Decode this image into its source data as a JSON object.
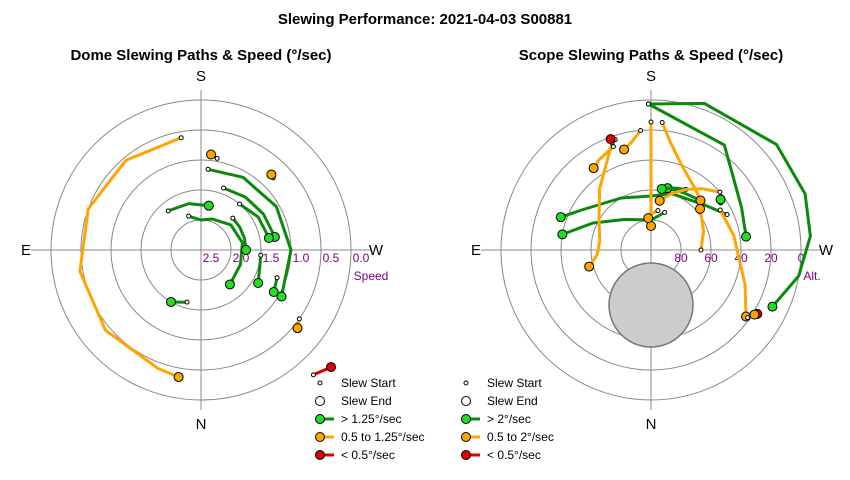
{
  "figure": {
    "title": "Slewing Performance: 2021-04-03 S00881"
  },
  "colors": {
    "fast": "#0a8a0a",
    "medium": "#ffa500",
    "slow": "#e00000",
    "marker_fast": "#22dd22",
    "marker_medium": "#ffa500",
    "marker_slow": "#e00000",
    "ring_label": "#800080",
    "grid": "#888888",
    "shade": "#cccccc"
  },
  "chart_data": [
    {
      "type": "polar-path",
      "title": "Dome Slewing Paths & Speed (°/sec)",
      "compass": {
        "top": "S",
        "bottom": "N",
        "left": "E",
        "right": "W"
      },
      "radial_axis": {
        "name": "Speed",
        "ticks": [
          "2.5",
          "2.0",
          "1.5",
          "1.0",
          "0.5",
          "0.0"
        ],
        "inverted": true,
        "range": [
          0,
          3
        ]
      },
      "legend": [
        {
          "label": "Slew Start",
          "kind": "start"
        },
        {
          "label": "Slew End",
          "kind": "end"
        },
        {
          "label": "> 1.25°/sec",
          "kind": "fast"
        },
        {
          "label": "0.5 to 1.25°/sec",
          "kind": "medium"
        },
        {
          "label": "< 0.5°/sec",
          "kind": "slow"
        }
      ],
      "paths": [
        {
          "cls": "medium",
          "az": [
            170,
            140,
            110,
            80,
            50,
            20,
            10
          ],
          "speed": [
            1.1,
            1.05,
            1.0,
            0.95,
            0.92,
            0.9,
            0.85
          ]
        },
        {
          "cls": "fast",
          "az": [
            185,
            210,
            240,
            270,
            300
          ],
          "speed": [
            1.65,
            1.6,
            1.55,
            1.5,
            1.45
          ]
        },
        {
          "cls": "fast",
          "az": [
            200,
            220,
            240,
            260
          ],
          "speed": [
            1.9,
            1.85,
            1.8,
            1.75
          ]
        },
        {
          "cls": "fast",
          "az": [
            220,
            240,
            260
          ],
          "speed": [
            2.0,
            1.9,
            1.85
          ]
        },
        {
          "cls": "fast",
          "az": [
            160,
            180,
            200,
            230,
            260,
            290,
            320
          ],
          "speed": [
            2.4,
            2.5,
            2.45,
            2.35,
            2.3,
            2.3,
            2.25
          ]
        },
        {
          "cls": "fast",
          "az": [
            225,
            240,
            255,
            270
          ],
          "speed": [
            2.25,
            2.25,
            2.25,
            2.25
          ]
        },
        {
          "cls": "fast",
          "az": [
            140,
            165,
            190
          ],
          "speed": [
            2.15,
            2.2,
            2.25
          ]
        },
        {
          "cls": "fast",
          "az": [
            15,
            30
          ],
          "speed": [
            2.1,
            2.0
          ]
        },
        {
          "cls": "fast",
          "az": [
            275,
            300
          ],
          "speed": [
            2.0,
            1.9
          ]
        },
        {
          "cls": "fast",
          "az": [
            290,
            300
          ],
          "speed": [
            1.65,
            1.6
          ]
        },
        {
          "cls": "slow",
          "az": [
            318,
            312
          ],
          "speed": [
            0.2,
            0.0
          ]
        },
        {
          "cls": "medium",
          "az": [
            305,
            309
          ],
          "speed": [
            1.0,
            0.93
          ]
        },
        {
          "cls": "medium",
          "az": [
            225,
            223
          ],
          "speed": [
            1.3,
            1.28
          ]
        },
        {
          "cls": "medium",
          "az": [
            190,
            186
          ],
          "speed": [
            1.45,
            1.4
          ]
        }
      ]
    },
    {
      "type": "polar-path",
      "title": "Scope Slewing Paths & Speed (°/sec)",
      "compass": {
        "top": "S",
        "bottom": "N",
        "left": "E",
        "right": "W"
      },
      "radial_axis": {
        "name": "Alt.",
        "ticks": [
          "80",
          "60",
          "40",
          "20",
          "0"
        ],
        "range": [
          0,
          90
        ]
      },
      "legend": [
        {
          "label": "Slew Start",
          "kind": "start"
        },
        {
          "label": "Slew End",
          "kind": "end"
        },
        {
          "label": "> 2°/sec",
          "kind": "fast"
        },
        {
          "label": "0.5 to 2°/sec",
          "kind": "medium"
        },
        {
          "label": "< 0.5°/sec",
          "kind": "slow"
        }
      ],
      "paths": [
        {
          "cls": "fast",
          "az": [
            179,
            200,
            230,
            250,
            265,
            280,
            295
          ],
          "alt": [
            17,
            12,
            8,
            8,
            10,
            15,
            23
          ]
        },
        {
          "cls": "fast",
          "az": [
            179,
            215,
            245,
            262
          ],
          "alt": [
            17,
            26,
            40,
            42
          ]
        },
        {
          "cls": "fast",
          "az": [
            200,
            180,
            140,
            115,
            100
          ],
          "alt": [
            70,
            75,
            70,
            58,
            45
          ]
        },
        {
          "cls": "fast",
          "az": [
            245,
            230,
            200,
            180,
            150,
            120,
            110
          ],
          "alt": [
            48,
            55,
            60,
            63,
            60,
            50,
            42
          ]
        },
        {
          "cls": "fast",
          "az": [
            225,
            210,
            195
          ],
          "alt": [
            55,
            57,
            58
          ]
        },
        {
          "cls": "fast",
          "az": [
            210,
            200,
            190
          ],
          "alt": [
            55,
            57,
            59
          ]
        },
        {
          "cls": "medium",
          "az": [
            180,
            180,
            180
          ],
          "alt": [
            26,
            50,
            78
          ]
        },
        {
          "cls": "medium",
          "az": [
            185,
            190,
            200,
            215,
            225
          ],
          "alt": [
            26,
            35,
            45,
            52,
            55
          ]
        },
        {
          "cls": "medium",
          "az": [
            160,
            140,
            120,
            100,
            85,
            75
          ],
          "alt": [
            33,
            50,
            60,
            64,
            63,
            58
          ]
        },
        {
          "cls": "medium",
          "az": [
            240,
            260,
            290,
            305
          ],
          "alt": [
            50,
            48,
            40,
            32
          ]
        },
        {
          "cls": "medium",
          "az": [
            270,
            250,
            230
          ],
          "alt": [
            65,
            62,
            58
          ]
        },
        {
          "cls": "medium",
          "az": [
            230,
            220,
            210,
            200,
            190
          ],
          "alt": [
            45,
            50,
            55,
            60,
            65
          ]
        },
        {
          "cls": "medium",
          "az": [
            175,
            170,
            165
          ],
          "alt": [
            30,
            35,
            38
          ]
        },
        {
          "cls": "medium",
          "az": [
            160,
            150,
            145
          ],
          "alt": [
            35,
            38,
            40
          ]
        },
        {
          "cls": "medium",
          "az": [
            190,
            180,
            175
          ],
          "alt": [
            70,
            72,
            74
          ]
        },
        {
          "cls": "slow",
          "az": [
            303,
            301
          ],
          "alt": [
            30,
            28
          ]
        },
        {
          "cls": "slow",
          "az": [
            162,
            160
          ],
          "alt": [
            32,
            31
          ]
        },
        {
          "cls": "medium",
          "az": [
            305,
            302
          ],
          "alt": [
            31,
            29
          ]
        },
        {
          "cls": "fast",
          "az": [
            236,
            234
          ],
          "alt": [
            48,
            47
          ]
        }
      ]
    }
  ]
}
